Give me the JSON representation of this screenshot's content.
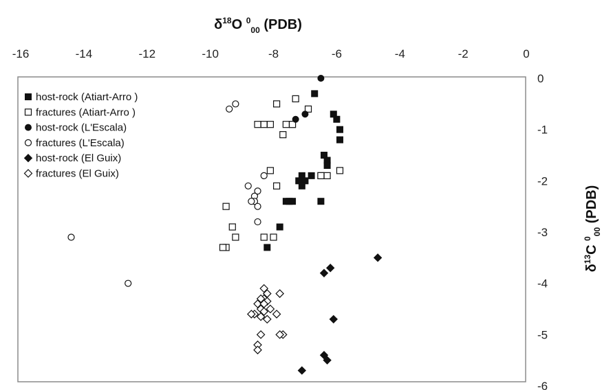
{
  "chart_data": {
    "type": "scatter",
    "x_axis": {
      "label_prefix": "δ",
      "label_sup1": "18",
      "label_mid": "O ",
      "label_sup2": "0",
      "label_sub": "00",
      "label_suffix": " (PDB)",
      "range": [
        -16,
        0
      ],
      "ticks": [
        "-16",
        "-14",
        "-12",
        "-10",
        "-8",
        "-6",
        "-4",
        "-2",
        "0"
      ],
      "position": "top"
    },
    "y_axis": {
      "label_prefix": "δ",
      "label_sup1": "13",
      "label_mid": "C ",
      "label_sup2": "0",
      "label_sub": "00",
      "label_suffix": " (PDB)",
      "range": [
        -6,
        0
      ],
      "ticks": [
        "0",
        "-1",
        "-2",
        "-3",
        "-4",
        "-5",
        "-6"
      ],
      "position": "right"
    },
    "grid": false,
    "legend": {
      "placement": "top-left"
    },
    "series": [
      {
        "name": "host-rock (Atiart-Arro )",
        "marker": "square-filled",
        "color": "#111111",
        "points": [
          [
            -6.7,
            -0.3
          ],
          [
            -6.1,
            -0.7
          ],
          [
            -6.0,
            -0.8
          ],
          [
            -5.9,
            -1.0
          ],
          [
            -5.9,
            -1.2
          ],
          [
            -7.4,
            -0.9
          ],
          [
            -6.4,
            -1.5
          ],
          [
            -6.3,
            -1.6
          ],
          [
            -6.3,
            -1.7
          ],
          [
            -7.1,
            -1.9
          ],
          [
            -6.8,
            -1.9
          ],
          [
            -6.5,
            -1.9
          ],
          [
            -7.0,
            -2.0
          ],
          [
            -7.2,
            -2.0
          ],
          [
            -7.1,
            -2.1
          ],
          [
            -7.6,
            -2.4
          ],
          [
            -7.5,
            -2.4
          ],
          [
            -7.4,
            -2.4
          ],
          [
            -6.5,
            -2.4
          ],
          [
            -7.8,
            -2.9
          ],
          [
            -8.2,
            -3.3
          ]
        ]
      },
      {
        "name": "fractures (Atiart-Arro )",
        "marker": "square-open",
        "color": "#111111",
        "points": [
          [
            -7.3,
            -0.4
          ],
          [
            -7.9,
            -0.5
          ],
          [
            -6.9,
            -0.6
          ],
          [
            -8.3,
            -0.9
          ],
          [
            -8.1,
            -0.9
          ],
          [
            -8.5,
            -0.9
          ],
          [
            -7.6,
            -0.9
          ],
          [
            -7.4,
            -0.9
          ],
          [
            -7.7,
            -1.1
          ],
          [
            -8.1,
            -1.8
          ],
          [
            -5.9,
            -1.8
          ],
          [
            -6.3,
            -1.9
          ],
          [
            -6.5,
            -1.9
          ],
          [
            -7.9,
            -2.1
          ],
          [
            -9.5,
            -2.5
          ],
          [
            -9.3,
            -2.9
          ],
          [
            -9.2,
            -3.1
          ],
          [
            -8.3,
            -3.1
          ],
          [
            -8.0,
            -3.1
          ],
          [
            -9.5,
            -3.3
          ],
          [
            -9.6,
            -3.3
          ]
        ]
      },
      {
        "name": "host-rock (L'Escala)",
        "marker": "circle-filled",
        "color": "#111111",
        "points": [
          [
            -6.5,
            0.0
          ],
          [
            -7.0,
            -0.7
          ],
          [
            -7.3,
            -0.8
          ]
        ]
      },
      {
        "name": "fractures (L'Escala)",
        "marker": "circle-open",
        "color": "#111111",
        "points": [
          [
            -9.2,
            -0.5
          ],
          [
            -9.4,
            -0.6
          ],
          [
            -8.3,
            -1.9
          ],
          [
            -8.8,
            -2.1
          ],
          [
            -8.5,
            -2.2
          ],
          [
            -8.6,
            -2.3
          ],
          [
            -8.6,
            -2.4
          ],
          [
            -8.7,
            -2.4
          ],
          [
            -8.5,
            -2.5
          ],
          [
            -8.5,
            -2.8
          ],
          [
            -14.4,
            -3.1
          ],
          [
            -12.6,
            -4.0
          ]
        ]
      },
      {
        "name": "host-rock (El Guix)",
        "marker": "diamond-filled",
        "color": "#111111",
        "points": [
          [
            -4.7,
            -3.5
          ],
          [
            -6.2,
            -3.7
          ],
          [
            -6.4,
            -3.8
          ],
          [
            -6.1,
            -4.7
          ],
          [
            -6.4,
            -5.4
          ],
          [
            -6.3,
            -5.5
          ],
          [
            -7.1,
            -5.7
          ]
        ]
      },
      {
        "name": "fractures (El Guix)",
        "marker": "diamond-open",
        "color": "#111111",
        "points": [
          [
            -8.3,
            -4.1
          ],
          [
            -8.2,
            -4.2
          ],
          [
            -8.3,
            -4.3
          ],
          [
            -7.8,
            -4.2
          ],
          [
            -8.4,
            -4.3
          ],
          [
            -8.2,
            -4.35
          ],
          [
            -8.5,
            -4.4
          ],
          [
            -8.3,
            -4.4
          ],
          [
            -8.4,
            -4.5
          ],
          [
            -8.1,
            -4.5
          ],
          [
            -8.3,
            -4.55
          ],
          [
            -8.6,
            -4.6
          ],
          [
            -7.9,
            -4.6
          ],
          [
            -8.4,
            -4.65
          ],
          [
            -8.2,
            -4.7
          ],
          [
            -8.7,
            -4.6
          ],
          [
            -7.7,
            -5.0
          ],
          [
            -7.8,
            -5.0
          ],
          [
            -8.4,
            -5.0
          ],
          [
            -8.5,
            -5.2
          ],
          [
            -8.5,
            -5.3
          ]
        ]
      }
    ]
  }
}
